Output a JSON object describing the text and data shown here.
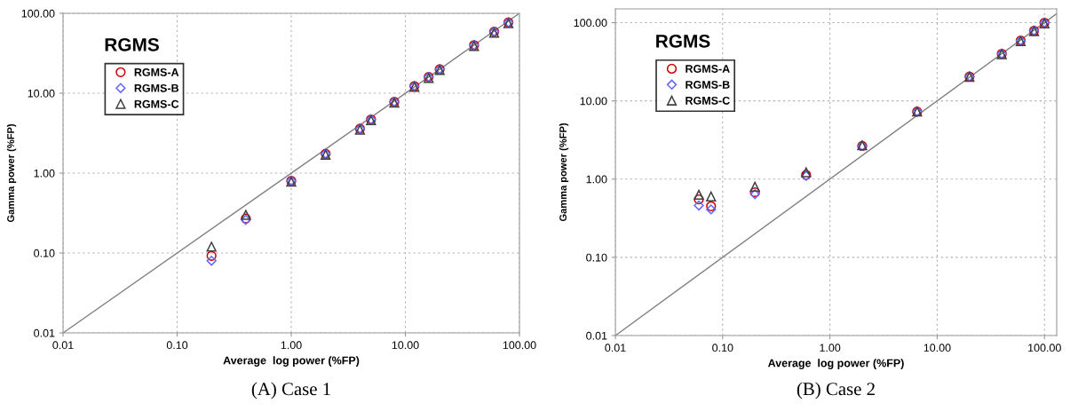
{
  "chart_data": [
    {
      "type": "scatter",
      "title": "RGMS",
      "xlabel": "Average  log power (%FP)",
      "ylabel": "Gamma power (%FP)",
      "annotations": [
        "(A) Case 1"
      ],
      "log": "xy",
      "xlim": [
        0.01,
        100
      ],
      "ylim": [
        0.01,
        100
      ],
      "xticks": [
        {
          "value": 0.01,
          "label": "0.01"
        },
        {
          "value": 0.1,
          "label": "0.10"
        },
        {
          "value": 1,
          "label": "1.00"
        },
        {
          "value": 10,
          "label": "10.00"
        },
        {
          "value": 100,
          "label": "100.00"
        }
      ],
      "yticks": [
        {
          "value": 0.01,
          "label": "0.01"
        },
        {
          "value": 0.1,
          "label": "0.10"
        },
        {
          "value": 1,
          "label": "1.00"
        },
        {
          "value": 10,
          "label": "10.00"
        },
        {
          "value": 100,
          "label": "100.00"
        }
      ],
      "grid": true,
      "legend": "top left",
      "x": [
        0.2,
        0.4,
        1,
        2,
        4,
        5,
        8,
        12,
        16,
        20,
        40,
        60,
        80
      ],
      "series": [
        {
          "name": "RGMS-A",
          "color": "#cc0000",
          "marker": "circle",
          "values": [
            0.092,
            0.27,
            0.8,
            1.75,
            3.6,
            4.7,
            7.8,
            12.3,
            16,
            20,
            40,
            59,
            77
          ]
        },
        {
          "name": "RGMS-B",
          "color": "#6666ff",
          "marker": "diamond",
          "values": [
            0.08,
            0.26,
            0.8,
            1.75,
            3.6,
            4.7,
            7.8,
            12.3,
            16,
            20,
            40,
            59,
            77
          ]
        },
        {
          "name": "RGMS-C",
          "color": "#404040",
          "marker": "triangle",
          "values": [
            0.12,
            0.3,
            0.78,
            1.7,
            3.5,
            4.6,
            7.6,
            12,
            15.5,
            19.5,
            39,
            57,
            75
          ]
        },
        {
          "type": "line",
          "color": "#808080",
          "marker": "none",
          "x": [
            0.01,
            100
          ],
          "values": [
            0.01,
            100
          ]
        }
      ]
    },
    {
      "type": "scatter",
      "title": "RGMS",
      "xlabel": "Average  log power (%FP)",
      "ylabel": "Gamma power (%FP)",
      "annotations": [
        "(B) Case 2"
      ],
      "log": "xy",
      "xlim": [
        0.01,
        130
      ],
      "ylim": [
        0.01,
        150
      ],
      "xticks": [
        {
          "value": 0.01,
          "label": "0.01"
        },
        {
          "value": 0.1,
          "label": "0.10"
        },
        {
          "value": 1,
          "label": "1.00"
        },
        {
          "value": 10,
          "label": "10.00"
        },
        {
          "value": 100,
          "label": "100.00"
        }
      ],
      "yticks": [
        {
          "value": 0.01,
          "label": "0.01"
        },
        {
          "value": 0.1,
          "label": "0.10"
        },
        {
          "value": 1,
          "label": "1.00"
        },
        {
          "value": 10,
          "label": "10.00"
        },
        {
          "value": 100,
          "label": "100.00"
        }
      ],
      "grid": true,
      "legend": "top left",
      "x": [
        0.06,
        0.078,
        0.2,
        0.6,
        2,
        6.5,
        20,
        40,
        60,
        80,
        100
      ],
      "series": [
        {
          "name": "RGMS-A",
          "color": "#cc0000",
          "marker": "circle",
          "values": [
            0.55,
            0.45,
            0.68,
            1.13,
            2.65,
            7.3,
            20.5,
            40,
            59,
            79,
            100
          ]
        },
        {
          "name": "RGMS-B",
          "color": "#6666ff",
          "marker": "diamond",
          "values": [
            0.46,
            0.41,
            0.64,
            1.1,
            2.65,
            7.3,
            20.5,
            40,
            59,
            79,
            100
          ]
        },
        {
          "name": "RGMS-C",
          "color": "#404040",
          "marker": "triangle",
          "values": [
            0.63,
            0.6,
            0.8,
            1.22,
            2.7,
            7.3,
            20.3,
            39.5,
            58,
            78,
            98
          ]
        },
        {
          "type": "line",
          "color": "#808080",
          "marker": "none",
          "x": [
            0.01,
            130
          ],
          "values": [
            0.01,
            130
          ]
        }
      ]
    }
  ]
}
